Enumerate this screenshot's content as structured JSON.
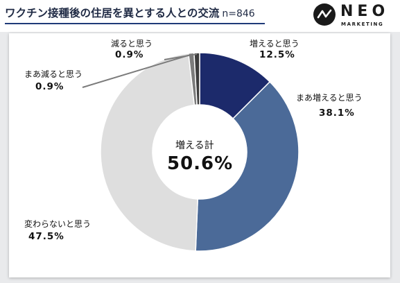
{
  "header": {
    "title": "ワクチン接種後の住居を異とする人との交流",
    "sample": "n=846"
  },
  "logo": {
    "name": "NEO",
    "sub": "MARKETING"
  },
  "chart_data": {
    "type": "pie",
    "title": "ワクチン接種後の住居を異とする人との交流",
    "categories": [
      "増えると思う",
      "まあ増えると思う",
      "変わらないと思う",
      "まあ減ると思う",
      "減ると思う"
    ],
    "values": [
      12.5,
      38.1,
      47.5,
      0.9,
      0.9
    ],
    "value_labels": [
      "12.5%",
      "38.1%",
      "47.5%",
      "0.9%",
      "0.9%"
    ],
    "colors": [
      "#1c2a6b",
      "#4b6a98",
      "#dedede",
      "#7b7b7b",
      "#3d3d3d"
    ],
    "donut": true,
    "center_label": "増える計",
    "center_value": "50.6%"
  }
}
